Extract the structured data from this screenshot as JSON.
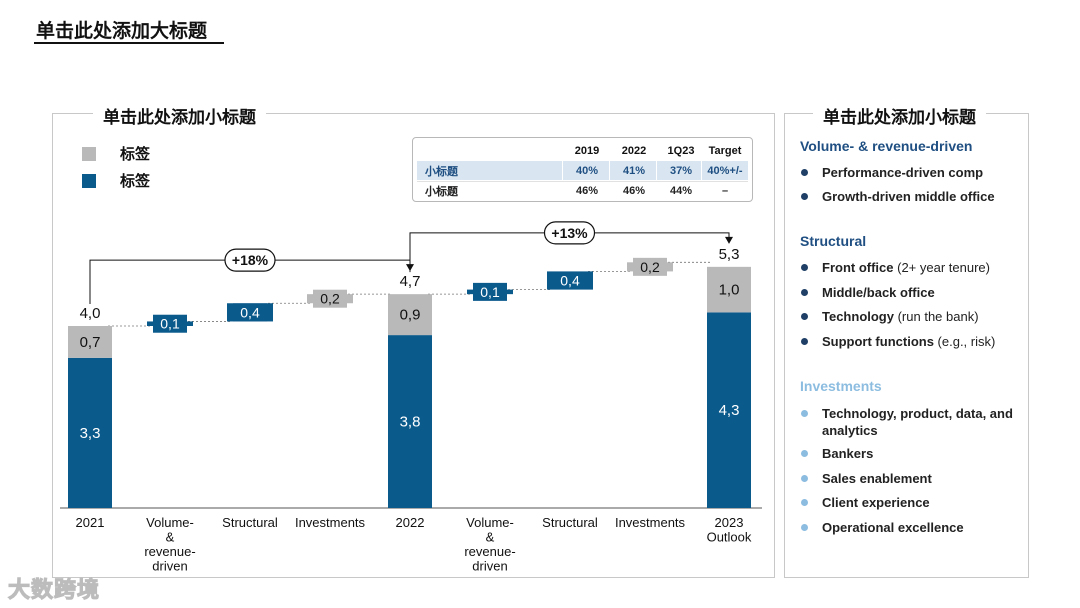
{
  "page": {
    "title": "单击此处添加大标题"
  },
  "left_panel": {
    "title": "单击此处添加小标题"
  },
  "right_panel": {
    "title": "单击此处添加小标题"
  },
  "legend": [
    {
      "label": "标签",
      "color": "#b9b9b9"
    },
    {
      "label": "标签",
      "color": "#0b5a8c"
    }
  ],
  "ratio_table": {
    "headers": [
      "",
      "2019",
      "2022",
      "1Q23",
      "Target"
    ],
    "rows": [
      {
        "label": "小标题",
        "values": [
          "40%",
          "41%",
          "37%",
          "40%+/-"
        ]
      },
      {
        "label": "小标题",
        "values": [
          "46%",
          "46%",
          "44%",
          "–"
        ]
      }
    ]
  },
  "chart_data": {
    "type": "bar",
    "subtype": "waterfall",
    "ylim": [
      0,
      6
    ],
    "categories": [
      "2021",
      "Volume-\n&\nrevenue-\ndriven",
      "Structural",
      "Investments",
      "2022",
      "Volume-\n&\nrevenue-\ndriven",
      "Structural",
      "Investments",
      "2023\nOutlook"
    ],
    "bars": [
      {
        "kind": "total",
        "total": 4.0,
        "total_label": "4,0",
        "segments": [
          {
            "series": "blue",
            "value": 3.3,
            "label": "3,3"
          },
          {
            "series": "gray",
            "value": 0.7,
            "label": "0,7"
          }
        ]
      },
      {
        "kind": "delta",
        "series": "blue",
        "base": 4.0,
        "value": 0.1,
        "label": "0,1"
      },
      {
        "kind": "delta",
        "series": "blue",
        "base": 4.1,
        "value": 0.4,
        "label": "0,4"
      },
      {
        "kind": "delta",
        "series": "gray",
        "base": 4.5,
        "value": 0.2,
        "label": "0,2"
      },
      {
        "kind": "total",
        "total": 4.7,
        "total_label": "4,7",
        "segments": [
          {
            "series": "blue",
            "value": 3.8,
            "label": "3,8"
          },
          {
            "series": "gray",
            "value": 0.9,
            "label": "0,9"
          }
        ]
      },
      {
        "kind": "delta",
        "series": "blue",
        "base": 4.7,
        "value": 0.1,
        "label": "0,1"
      },
      {
        "kind": "delta",
        "series": "blue",
        "base": 4.8,
        "value": 0.4,
        "label": "0,4"
      },
      {
        "kind": "delta",
        "series": "gray",
        "base": 5.2,
        "value": 0.2,
        "label": "0,2"
      },
      {
        "kind": "total",
        "total": 5.3,
        "total_label": "5,3",
        "segments": [
          {
            "series": "blue",
            "value": 4.3,
            "label": "4,3"
          },
          {
            "series": "gray",
            "value": 1.0,
            "label": "1,0"
          }
        ]
      }
    ],
    "growth_annotations": [
      {
        "from": 0,
        "to": 4,
        "label": "+18%"
      },
      {
        "from": 4,
        "to": 8,
        "label": "+13%"
      }
    ],
    "colors": {
      "blue": "#0b5a8c",
      "gray": "#b9b9b9"
    },
    "grid": false
  },
  "drivers": {
    "sections": [
      {
        "title": "Volume- & revenue-driven",
        "color": "#1f4f82",
        "dot_color": "#1f3f66",
        "items": [
          {
            "bold": "Performance-driven comp",
            "rest": ""
          },
          {
            "bold": "Growth-driven middle office",
            "rest": ""
          }
        ]
      },
      {
        "title": "Structural",
        "color": "#1f4f82",
        "dot_color": "#1f3f66",
        "items": [
          {
            "bold": "Front office",
            "rest": " (2+ year tenure)"
          },
          {
            "bold": "Middle/back office",
            "rest": ""
          },
          {
            "bold": "Technology",
            "rest": " (run the bank)"
          },
          {
            "bold": "Support functions",
            "rest": " (e.g., risk)"
          }
        ]
      },
      {
        "title": "Investments",
        "color": "#8cbde0",
        "dot_color": "#8cbde0",
        "items": [
          {
            "bold": "Technology, product, data, and analytics",
            "rest": ""
          },
          {
            "bold": "Bankers",
            "rest": ""
          },
          {
            "bold": "Sales enablement",
            "rest": ""
          },
          {
            "bold": "Client experience",
            "rest": ""
          },
          {
            "bold": "Operational excellence",
            "rest": ""
          }
        ]
      }
    ]
  },
  "watermark": "大数跨境"
}
